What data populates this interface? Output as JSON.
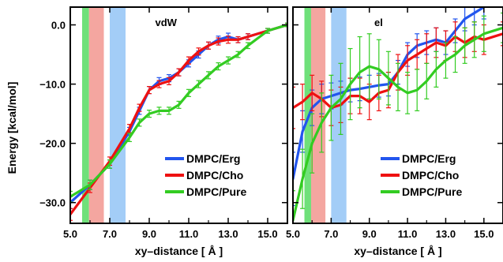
{
  "figure": {
    "ylabel": "Energy [kcal/mol]",
    "xlabel": "xy–distance [ Å ]"
  },
  "chart_data": [
    {
      "type": "line",
      "title": "vdW",
      "xlabel": "xy–distance [ Å ]",
      "ylabel": "Energy [kcal/mol]",
      "xlim": [
        5.0,
        16.0
      ],
      "ylim": [
        -33.5,
        3.0
      ],
      "x_ticks": [
        "5.0",
        "7.0",
        "9.0",
        "11.0",
        "13.0",
        "15.0"
      ],
      "x_tick_values": [
        5,
        7,
        9,
        11,
        13,
        15
      ],
      "y_ticks": [
        "0.0",
        "−10.0",
        "−20.0",
        "−30.0"
      ],
      "y_tick_values": [
        0,
        -10,
        -20,
        -30
      ],
      "legend_position": "bottom-right",
      "shaded_bands": [
        {
          "x0": 5.6,
          "x1": 5.95,
          "color": "#6fe07a"
        },
        {
          "x0": 5.95,
          "x1": 6.7,
          "color": "#f4a6a0"
        },
        {
          "x0": 7.0,
          "x1": 7.8,
          "color": "#a3cdf7"
        }
      ],
      "series": [
        {
          "name": "DMPC/Erg",
          "color": "#2255ee",
          "x": [
            5.0,
            6.0,
            7.0,
            8.0,
            8.5,
            9.0,
            9.5,
            10.0,
            10.5,
            11.0,
            11.5,
            12.0,
            12.5,
            13.0,
            13.5,
            14.0,
            15.0,
            16.0
          ],
          "y": [
            -30.0,
            -27.0,
            -23.5,
            -18.0,
            -14.5,
            -11.0,
            -9.5,
            -9.0,
            -8.0,
            -6.5,
            -5.0,
            -3.5,
            -2.5,
            -2.0,
            -2.5,
            -2.0,
            -1.0,
            0.0
          ],
          "err": [
            1.0,
            0.8,
            0.7,
            0.7,
            0.6,
            0.6,
            0.6,
            0.6,
            0.6,
            0.6,
            0.6,
            0.6,
            0.6,
            0.6,
            0.5,
            0.5,
            0.4,
            0.3
          ]
        },
        {
          "name": "DMPC/Cho",
          "color": "#ee1111",
          "x": [
            5.0,
            6.0,
            7.0,
            8.0,
            8.5,
            9.0,
            9.5,
            10.0,
            10.5,
            11.0,
            11.5,
            12.0,
            12.5,
            13.0,
            13.5,
            14.0,
            15.0,
            16.0
          ],
          "y": [
            -32.0,
            -27.5,
            -23.0,
            -17.5,
            -14.0,
            -11.0,
            -10.0,
            -9.5,
            -8.0,
            -6.0,
            -4.5,
            -3.5,
            -2.8,
            -2.5,
            -2.5,
            -2.0,
            -1.0,
            0.0
          ],
          "err": [
            1.0,
            0.8,
            0.7,
            0.7,
            0.6,
            0.6,
            0.6,
            0.6,
            0.6,
            0.6,
            0.6,
            0.6,
            0.6,
            0.6,
            0.5,
            0.5,
            0.4,
            0.3
          ]
        },
        {
          "name": "DMPC/Pure",
          "color": "#33cc22",
          "x": [
            5.0,
            6.0,
            7.0,
            8.0,
            8.5,
            9.0,
            9.5,
            10.0,
            10.5,
            11.0,
            11.5,
            12.0,
            12.5,
            13.0,
            13.5,
            14.0,
            15.0,
            16.0
          ],
          "y": [
            -29.0,
            -27.0,
            -23.5,
            -19.0,
            -16.5,
            -15.0,
            -14.5,
            -14.5,
            -13.5,
            -11.5,
            -10.0,
            -8.5,
            -7.0,
            -6.0,
            -5.0,
            -3.5,
            -1.0,
            0.0
          ],
          "err": [
            0.9,
            0.8,
            0.7,
            0.7,
            0.6,
            0.6,
            0.6,
            0.6,
            0.6,
            0.6,
            0.6,
            0.6,
            0.6,
            0.6,
            0.5,
            0.5,
            0.4,
            0.3
          ]
        }
      ]
    },
    {
      "type": "line",
      "title": "el",
      "xlabel": "xy–distance [ Å ]",
      "ylabel": "",
      "xlim": [
        5.0,
        16.0
      ],
      "ylim": [
        -33.5,
        3.0
      ],
      "x_ticks": [
        "5.0",
        "7.0",
        "9.0",
        "11.0",
        "13.0",
        "15.0"
      ],
      "x_tick_values": [
        5,
        7,
        9,
        11,
        13,
        15
      ],
      "y_ticks": [],
      "y_tick_values": [
        0,
        -10,
        -20,
        -30
      ],
      "legend_position": "bottom-right",
      "shaded_bands": [
        {
          "x0": 5.6,
          "x1": 5.95,
          "color": "#6fe07a"
        },
        {
          "x0": 5.95,
          "x1": 6.7,
          "color": "#f4a6a0"
        },
        {
          "x0": 7.0,
          "x1": 7.8,
          "color": "#a3cdf7"
        }
      ],
      "series": [
        {
          "name": "DMPC/Erg",
          "color": "#2255ee",
          "x": [
            5.0,
            5.5,
            6.0,
            6.5,
            7.0,
            7.5,
            8.0,
            8.5,
            9.0,
            9.5,
            10.0,
            10.5,
            11.0,
            11.5,
            12.0,
            12.5,
            13.0,
            13.5,
            14.0,
            14.5,
            15.0
          ],
          "y": [
            -26.0,
            -18.0,
            -14.0,
            -12.5,
            -12.0,
            -11.5,
            -11.0,
            -10.8,
            -10.5,
            -10.2,
            -10.0,
            -8.0,
            -5.0,
            -3.5,
            -3.0,
            -2.5,
            -3.0,
            -1.0,
            1.0,
            2.0,
            3.0
          ],
          "err": [
            4.5,
            3.5,
            3.0,
            2.5,
            2.2,
            2.0,
            2.0,
            2.0,
            2.0,
            2.0,
            2.0,
            2.0,
            2.0,
            2.0,
            2.0,
            2.0,
            2.0,
            2.0,
            2.0,
            2.0,
            2.0
          ]
        },
        {
          "name": "DMPC/Cho",
          "color": "#ee1111",
          "x": [
            5.0,
            5.5,
            6.0,
            6.5,
            7.0,
            7.5,
            8.0,
            8.5,
            9.0,
            9.5,
            10.0,
            10.5,
            11.0,
            11.5,
            12.0,
            12.5,
            13.0,
            13.5,
            14.0,
            14.5,
            15.0,
            16.0
          ],
          "y": [
            -14.0,
            -13.0,
            -11.5,
            -12.5,
            -14.0,
            -13.5,
            -12.0,
            -12.0,
            -13.0,
            -11.5,
            -11.0,
            -8.0,
            -6.0,
            -5.0,
            -4.0,
            -3.0,
            -3.5,
            -2.0,
            -3.0,
            -2.0,
            -2.5,
            -1.5
          ],
          "err": [
            3.5,
            3.0,
            3.0,
            3.0,
            3.0,
            3.0,
            3.0,
            3.0,
            3.0,
            3.0,
            3.0,
            3.0,
            2.5,
            2.5,
            2.5,
            2.5,
            2.5,
            2.5,
            2.5,
            2.5,
            2.5,
            2.0
          ]
        },
        {
          "name": "DMPC/Pure",
          "color": "#33cc22",
          "x": [
            5.0,
            5.5,
            6.0,
            6.5,
            7.0,
            7.5,
            8.0,
            8.5,
            9.0,
            9.5,
            10.0,
            10.5,
            11.0,
            11.5,
            12.0,
            12.5,
            13.0,
            13.5,
            14.0,
            14.5,
            15.0,
            16.0
          ],
          "y": [
            -33.0,
            -26.0,
            -20.0,
            -16.5,
            -14.0,
            -12.5,
            -10.0,
            -8.0,
            -7.0,
            -7.5,
            -9.0,
            -10.5,
            -11.5,
            -11.0,
            -9.5,
            -7.5,
            -6.0,
            -5.0,
            -3.5,
            -2.5,
            -1.5,
            -0.5
          ],
          "err": [
            5.0,
            5.0,
            5.0,
            5.0,
            5.5,
            6.0,
            6.0,
            6.0,
            5.5,
            5.0,
            4.5,
            4.0,
            3.5,
            3.5,
            3.0,
            3.0,
            3.0,
            3.0,
            3.0,
            3.0,
            3.0,
            2.5
          ]
        }
      ]
    }
  ]
}
